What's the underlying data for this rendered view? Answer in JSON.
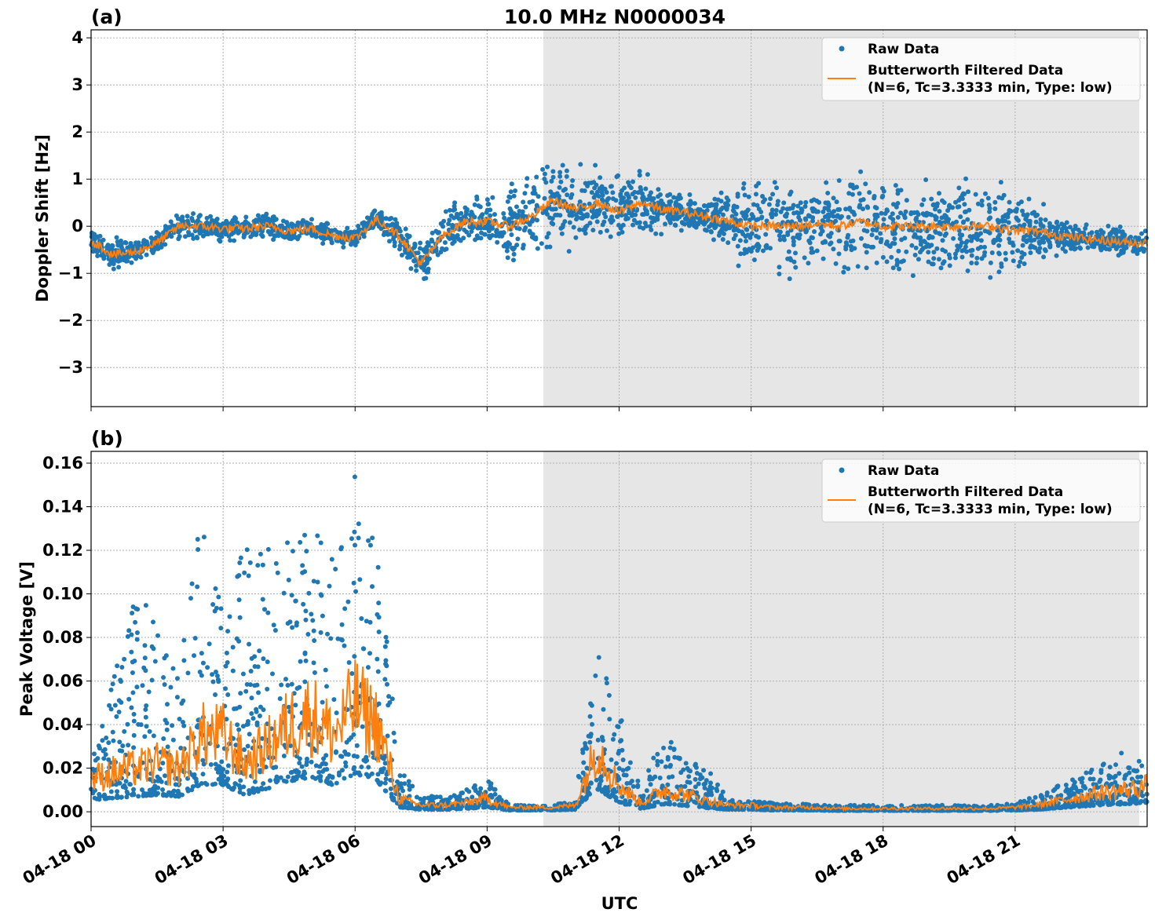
{
  "chart_data": [
    {
      "type": "scatter",
      "panel_label": "(a)",
      "title": "10.0 MHz N0000034",
      "xlabel": "",
      "ylabel": "Doppler Shift [Hz]",
      "xlim_hours": [
        0,
        24
      ],
      "ylim": [
        -3.83,
        4.17
      ],
      "yticks": [
        4,
        3,
        2,
        1,
        0,
        -1,
        -2,
        -3
      ],
      "ytick_labels": [
        "4",
        "3",
        "2",
        "1",
        "0",
        "−1",
        "−2",
        "−3"
      ],
      "grid": true,
      "shaded_region_hours": [
        10.28,
        23.82
      ],
      "legend": {
        "placement": "top-right",
        "entries": [
          "Raw Data",
          "Butterworth Filtered Data",
          "(N=6, Tc=3.3333 min, Type: low)"
        ]
      },
      "x_hours": [
        0,
        0.5,
        1,
        1.5,
        2,
        2.5,
        3,
        3.5,
        4,
        4.5,
        5,
        5.5,
        6,
        6.5,
        7,
        7.5,
        8,
        8.5,
        9,
        9.5,
        10,
        10.5,
        11,
        11.5,
        12,
        12.5,
        13,
        13.5,
        14,
        14.5,
        15,
        15.5,
        16,
        16.5,
        17,
        17.5,
        18,
        18.5,
        19,
        19.5,
        20,
        20.5,
        21,
        21.5,
        22,
        22.5,
        23,
        23.5,
        24
      ],
      "series": [
        {
          "name": "Butterworth Filtered Data",
          "color": "#ff7f0e",
          "values": [
            -0.3,
            -0.6,
            -0.55,
            -0.35,
            0.0,
            0.0,
            -0.05,
            -0.05,
            0.0,
            -0.1,
            -0.05,
            -0.2,
            -0.25,
            0.15,
            -0.2,
            -0.8,
            -0.2,
            0.1,
            0.1,
            0.0,
            0.2,
            0.55,
            0.35,
            0.5,
            0.3,
            0.5,
            0.35,
            0.3,
            0.2,
            0.1,
            0.0,
            0.0,
            0.0,
            0.05,
            0.0,
            0.1,
            0.0,
            0.0,
            0.0,
            0.0,
            0.0,
            0.0,
            -0.1,
            -0.1,
            -0.2,
            -0.25,
            -0.3,
            -0.35,
            -0.35
          ]
        },
        {
          "name": "Raw Data",
          "color": "#1f77b4",
          "spread": [
            0.35,
            0.45,
            0.4,
            0.35,
            0.35,
            0.35,
            0.35,
            0.35,
            0.35,
            0.35,
            0.3,
            0.3,
            0.25,
            0.3,
            0.45,
            0.6,
            0.65,
            0.6,
            0.7,
            1.2,
            1.2,
            1.3,
            1.1,
            1.0,
            0.9,
            0.8,
            0.6,
            0.5,
            0.5,
            0.9,
            1.2,
            1.3,
            1.3,
            1.3,
            1.3,
            1.35,
            1.35,
            1.3,
            1.3,
            1.3,
            1.3,
            1.25,
            1.1,
            0.8,
            0.55,
            0.45,
            0.4,
            0.4,
            0.4
          ]
        }
      ]
    },
    {
      "type": "scatter",
      "panel_label": "(b)",
      "xlabel": "UTC",
      "ylabel": "Peak Voltage [V]",
      "xlim_hours": [
        0,
        24
      ],
      "ylim": [
        -0.0068,
        0.1654
      ],
      "yticks": [
        0.16,
        0.14,
        0.12,
        0.1,
        0.08,
        0.06,
        0.04,
        0.02,
        0.0
      ],
      "ytick_labels": [
        "0.16",
        "0.14",
        "0.12",
        "0.10",
        "0.08",
        "0.06",
        "0.04",
        "0.02",
        "0.00"
      ],
      "xticks_hours": [
        0,
        3,
        6,
        9,
        12,
        15,
        18,
        21
      ],
      "xtick_labels": [
        "04-18 00",
        "04-18 03",
        "04-18 06",
        "04-18 09",
        "04-18 12",
        "04-18 15",
        "04-18 18",
        "04-18 21"
      ],
      "grid": true,
      "shaded_region_hours": [
        10.28,
        23.82
      ],
      "legend": {
        "placement": "top-right",
        "entries": [
          "Raw Data",
          "Butterworth Filtered Data",
          "(N=6, Tc=3.3333 min, Type: low)"
        ]
      },
      "x_hours": [
        0,
        0.5,
        1,
        1.5,
        2,
        2.5,
        3,
        3.5,
        4,
        4.5,
        5,
        5.5,
        6,
        6.5,
        7,
        7.5,
        8,
        8.5,
        9,
        9.5,
        10,
        10.5,
        11,
        11.5,
        12,
        12.5,
        13,
        13.5,
        14,
        14.5,
        15,
        15.5,
        16,
        16.5,
        17,
        17.5,
        18,
        18.5,
        19,
        19.5,
        20,
        20.5,
        21,
        21.5,
        22,
        22.5,
        23,
        23.5,
        24
      ],
      "series": [
        {
          "name": "Butterworth Filtered Data",
          "color": "#ff7f0e",
          "values": [
            0.015,
            0.018,
            0.02,
            0.022,
            0.02,
            0.035,
            0.035,
            0.022,
            0.03,
            0.04,
            0.045,
            0.035,
            0.05,
            0.04,
            0.006,
            0.003,
            0.003,
            0.004,
            0.006,
            0.002,
            0.002,
            0.002,
            0.003,
            0.03,
            0.012,
            0.004,
            0.01,
            0.008,
            0.005,
            0.003,
            0.003,
            0.002,
            0.002,
            0.002,
            0.0015,
            0.0015,
            0.0015,
            0.0015,
            0.0015,
            0.0015,
            0.0015,
            0.0015,
            0.002,
            0.003,
            0.005,
            0.007,
            0.009,
            0.01,
            0.012
          ]
        },
        {
          "name": "Raw Data",
          "color": "#1f77b4",
          "peak": [
            0.03,
            0.06,
            0.1,
            0.09,
            0.06,
            0.15,
            0.09,
            0.125,
            0.12,
            0.13,
            0.13,
            0.12,
            0.155,
            0.13,
            0.02,
            0.008,
            0.007,
            0.01,
            0.016,
            0.003,
            0.003,
            0.003,
            0.006,
            0.073,
            0.047,
            0.01,
            0.039,
            0.024,
            0.02,
            0.006,
            0.005,
            0.004,
            0.004,
            0.003,
            0.003,
            0.003,
            0.003,
            0.003,
            0.003,
            0.003,
            0.003,
            0.003,
            0.004,
            0.008,
            0.013,
            0.018,
            0.022,
            0.028,
            0.025
          ]
        }
      ]
    }
  ]
}
